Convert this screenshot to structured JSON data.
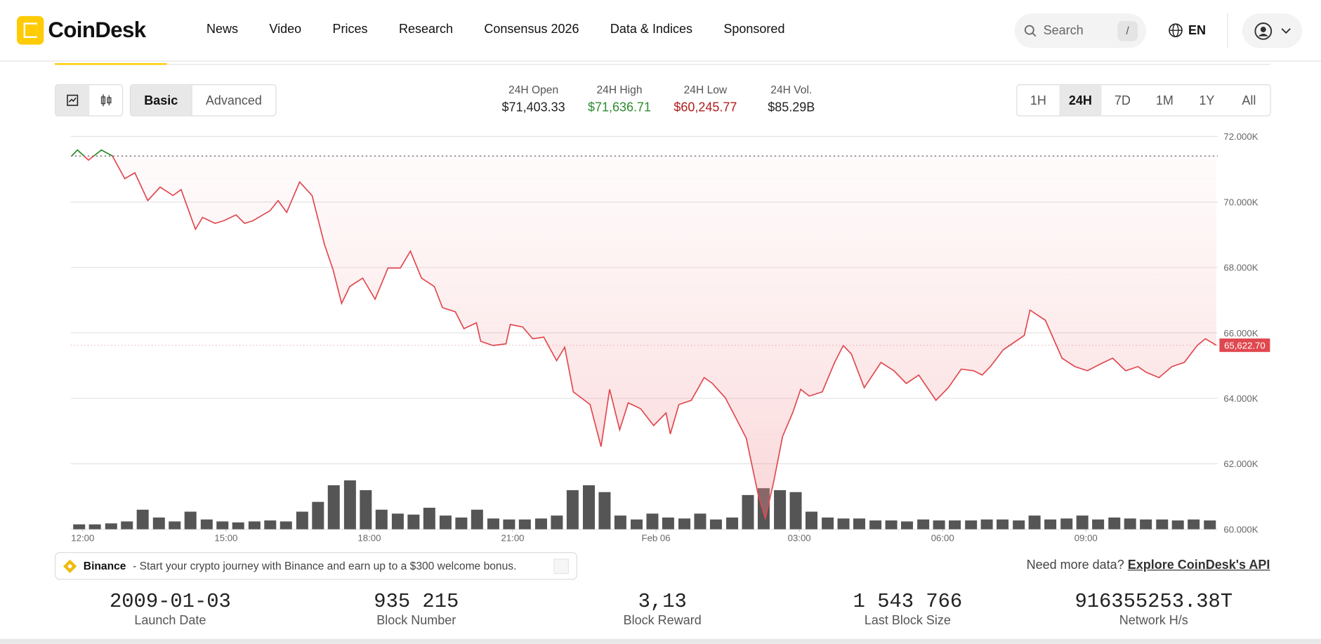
{
  "header": {
    "logo": "CoinDesk",
    "nav": [
      "News",
      "Video",
      "Prices",
      "Research",
      "Consensus 2026",
      "Data & Indices",
      "Sponsored"
    ],
    "search": "Search",
    "search_key": "/",
    "language": "EN"
  },
  "toolbar": {
    "modes": [
      "Basic",
      "Advanced"
    ],
    "active_mode": 0,
    "ranges": [
      "1H",
      "24H",
      "7D",
      "1M",
      "1Y",
      "All"
    ],
    "active_range": 1
  },
  "stats": [
    {
      "label": "24H Open",
      "value": "$71,403.33",
      "color": "#222222"
    },
    {
      "label": "24H High",
      "value": "$71,636.71",
      "color": "#2e8b2e"
    },
    {
      "label": "24H Low",
      "value": "$60,245.77",
      "color": "#b01c1c"
    },
    {
      "label": "24H Vol.",
      "value": "$85.29B",
      "color": "#222222"
    }
  ],
  "chart_data": {
    "type": "line",
    "x": [
      -0.23,
      -0.11,
      0.12,
      0.39,
      0.62,
      0.88,
      1.09,
      1.36,
      1.62,
      1.89,
      2.06,
      2.36,
      2.51,
      2.77,
      2.95,
      3.21,
      3.39,
      3.56,
      3.92,
      4.09,
      4.27,
      4.54,
      4.8,
      5.06,
      5.24,
      5.42,
      5.59,
      5.86,
      6.12,
      6.39,
      6.65,
      6.86,
      7.09,
      7.36,
      7.53,
      7.8,
      7.98,
      8.24,
      8.33,
      8.59,
      8.86,
      8.95,
      9.21,
      9.42,
      9.65,
      9.92,
      10.09,
      10.27,
      10.62,
      10.85,
      11.03,
      11.24,
      11.42,
      11.68,
      11.95,
      12.21,
      12.3,
      12.48,
      12.74,
      13.01,
      13.18,
      13.45,
      13.71,
      13.89,
      14.15,
      14.29,
      14.47,
      14.65,
      14.86,
      15.03,
      15.21,
      15.48,
      15.74,
      15.92,
      16.09,
      16.36,
      16.71,
      16.98,
      17.24,
      17.5,
      17.86,
      18.12,
      18.39,
      18.65,
      18.83,
      19.0,
      19.27,
      19.53,
      19.71,
      19.83,
      20.15,
      20.5,
      20.77,
      21.03,
      21.3,
      21.56,
      21.83,
      22.09,
      22.27,
      22.53,
      22.8,
      23.06,
      23.33,
      23.5,
      23.73
    ],
    "series": [
      {
        "color": "#e0484f",
        "above_color": "#2a8a2a",
        "values": [
          71408,
          71588,
          71279,
          71588,
          71408,
          70712,
          70893,
          70043,
          70455,
          70198,
          70378,
          69167,
          69528,
          69348,
          69425,
          69605,
          69348,
          69425,
          69734,
          70043,
          69683,
          70610,
          70198,
          68704,
          67932,
          66902,
          67417,
          67674,
          67030,
          67983,
          67983,
          68498,
          67674,
          67417,
          66773,
          66644,
          66129,
          66309,
          65743,
          65614,
          65665,
          66258,
          66181,
          65820,
          65871,
          65150,
          65563,
          64198,
          63812,
          62524,
          64275,
          63039,
          63863,
          63683,
          63168,
          63554,
          62910,
          63812,
          63940,
          64636,
          64455,
          64018,
          63297,
          62782,
          60979,
          60335,
          61494,
          62833,
          63554,
          64275,
          64069,
          64198,
          65099,
          65614,
          65357,
          64327,
          65099,
          64843,
          64455,
          64713,
          63940,
          64327,
          64893,
          64843,
          64713,
          64971,
          65486,
          65743,
          65923,
          66696,
          66387,
          65228,
          64971,
          64843,
          65048,
          65228,
          64843,
          64971,
          64790,
          64636,
          64971,
          65099,
          65614,
          65820,
          65622.7
        ]
      }
    ],
    "open": 71403.33,
    "last_label": "65,622.70",
    "volume": {
      "color": "#555555",
      "x": [
        -0.2,
        0.13,
        0.47,
        0.8,
        1.13,
        1.47,
        1.8,
        2.13,
        2.47,
        2.8,
        3.13,
        3.47,
        3.8,
        4.13,
        4.47,
        4.8,
        5.13,
        5.47,
        5.8,
        6.13,
        6.47,
        6.8,
        7.13,
        7.47,
        7.8,
        8.13,
        8.47,
        8.8,
        9.13,
        9.47,
        9.8,
        10.13,
        10.47,
        10.8,
        11.13,
        11.47,
        11.8,
        12.13,
        12.47,
        12.8,
        13.13,
        13.47,
        13.8,
        14.13,
        14.47,
        14.8,
        15.13,
        15.47,
        15.8,
        16.13,
        16.47,
        16.8,
        17.13,
        17.47,
        17.8,
        18.13,
        18.47,
        18.8,
        19.13,
        19.47,
        19.8,
        20.13,
        20.47,
        20.8,
        21.13,
        21.47,
        21.8,
        22.13,
        22.47,
        22.8,
        23.13,
        23.47
      ],
      "values": [
        5,
        5,
        6,
        8,
        20,
        12,
        8,
        18,
        10,
        8,
        7,
        8,
        9,
        8,
        18,
        28,
        45,
        50,
        40,
        20,
        16,
        15,
        22,
        14,
        12,
        20,
        11,
        10,
        10,
        11,
        14,
        40,
        45,
        38,
        14,
        10,
        16,
        12,
        11,
        16,
        10,
        12,
        35,
        42,
        40,
        38,
        18,
        12,
        11,
        11,
        9,
        9,
        8,
        10,
        9,
        9,
        9,
        10,
        10,
        9,
        14,
        10,
        11,
        14,
        10,
        12,
        11,
        10,
        10,
        9,
        10,
        9
      ]
    },
    "xlim": [
      -0.25,
      23.76
    ],
    "xticks": [
      {
        "value": 0,
        "label": "12:00"
      },
      {
        "value": 3,
        "label": "15:00"
      },
      {
        "value": 6,
        "label": "18:00"
      },
      {
        "value": 9,
        "label": "21:00"
      },
      {
        "value": 12,
        "label": "Feb 06"
      },
      {
        "value": 15,
        "label": "03:00"
      },
      {
        "value": 18,
        "label": "06:00"
      },
      {
        "value": 21,
        "label": "09:00"
      }
    ],
    "ylim": [
      60000,
      72000
    ],
    "yticks": [
      {
        "value": 60000,
        "label": "60.000K"
      },
      {
        "value": 62000,
        "label": "62.000K"
      },
      {
        "value": 64000,
        "label": "64.000K"
      },
      {
        "value": 66000,
        "label": "66.000K"
      },
      {
        "value": 68000,
        "label": "68.000K"
      },
      {
        "value": 70000,
        "label": "70.000K"
      },
      {
        "value": 72000,
        "label": "72.000K"
      }
    ],
    "grid": true
  },
  "ad": {
    "brand": "Binance",
    "text": "- Start your crypto journey with Binance and earn up to a $300 welcome bonus."
  },
  "api": {
    "prompt": "Need more data?",
    "link": "Explore CoinDesk's API"
  },
  "network": [
    {
      "value": "2009-01-03",
      "label": "Launch Date"
    },
    {
      "value": "935 215",
      "label": "Block Number"
    },
    {
      "value": "3,13",
      "label": "Block Reward"
    },
    {
      "value": "1 543 766",
      "label": "Last Block Size"
    },
    {
      "value": "916355253.38T",
      "label": "Network H/s"
    }
  ]
}
